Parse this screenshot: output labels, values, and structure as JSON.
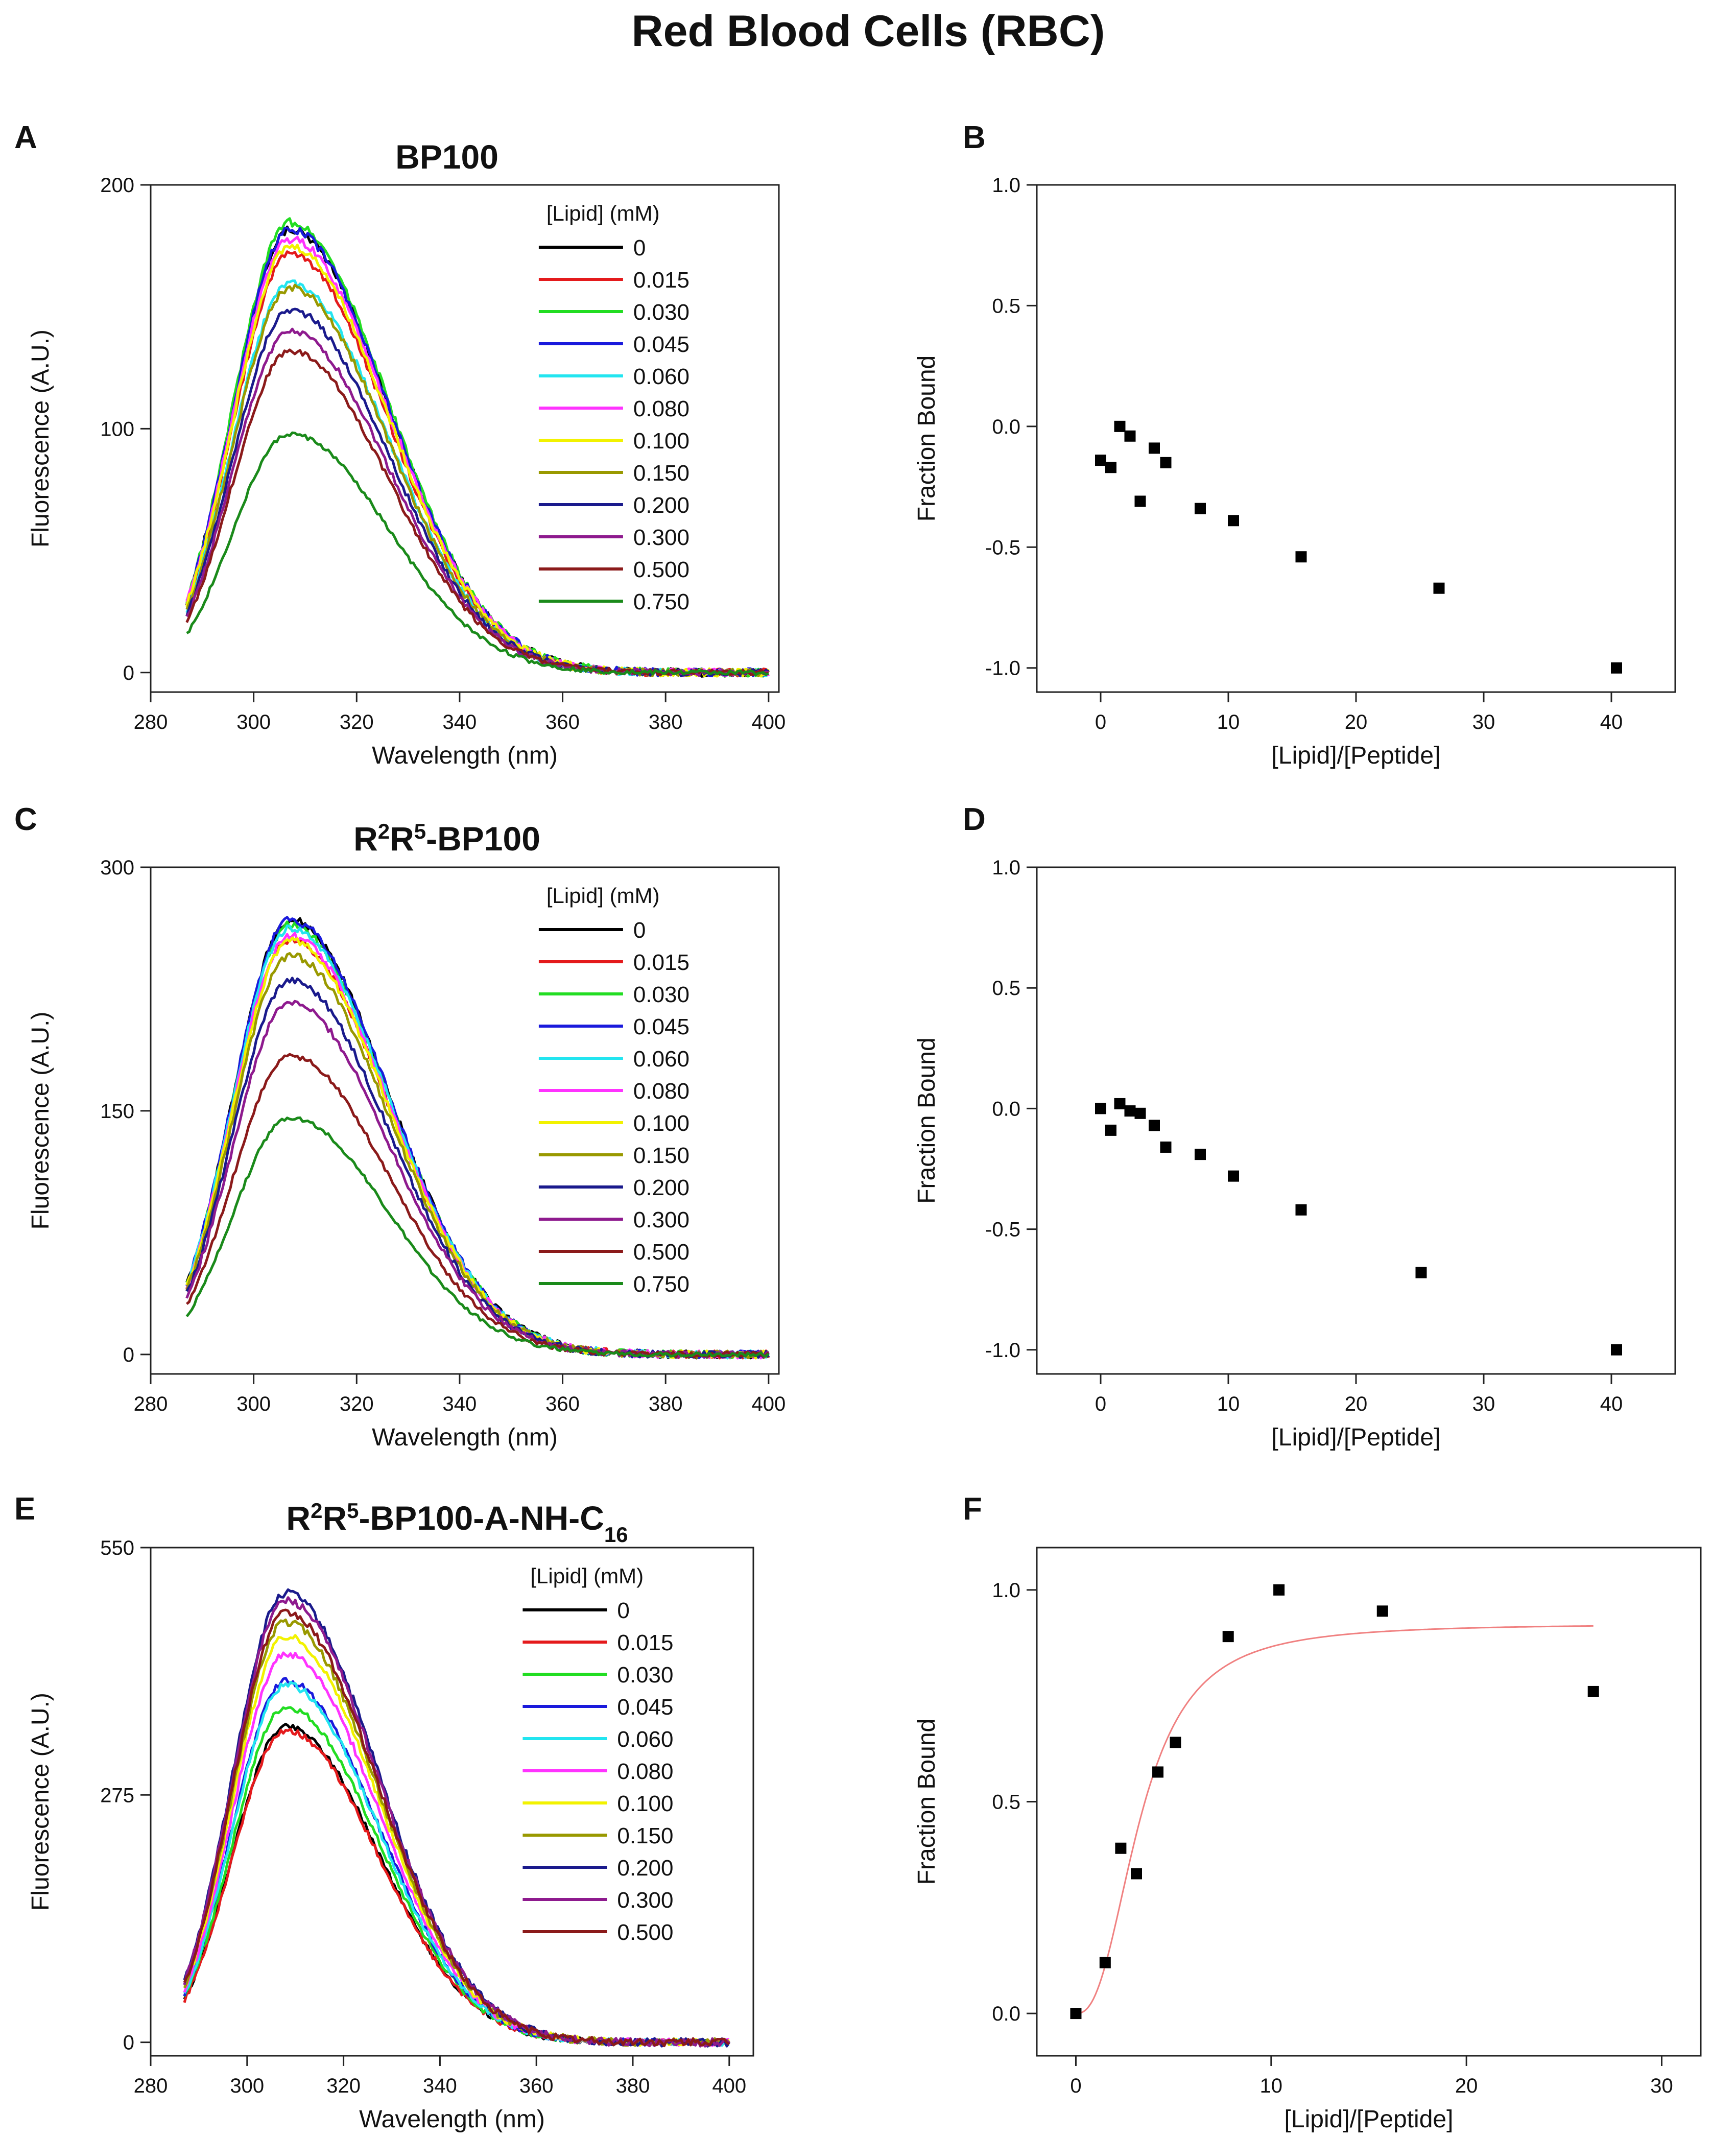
{
  "figure_title": "Red Blood Cells (RBC)",
  "chart_data": [
    {
      "panel": "A",
      "type": "line",
      "title_main": "BP100",
      "xlabel": "Wavelength (nm)",
      "ylabel": "Fluorescence (A.U.)",
      "xlim": [
        280,
        402
      ],
      "ylim": [
        -8,
        200
      ],
      "xticks": [
        280,
        300,
        320,
        340,
        360,
        380,
        400
      ],
      "xtick_labels": [
        "280",
        "300",
        "320",
        "340",
        "360",
        "380",
        "400"
      ],
      "yticks": [
        0,
        100,
        200
      ],
      "ytick_labels": [
        "0",
        "100",
        "200"
      ],
      "legend_title": "[Lipid] (mM)",
      "legend_position": "top-right",
      "curve_model": {
        "x_start": 287,
        "x_end": 400,
        "peak_x": 307,
        "width_left": 11,
        "width_right": 19
      },
      "series": [
        {
          "name": "0",
          "color": "#000000",
          "peak": 182
        },
        {
          "name": "0.015",
          "color": "#e41a1c",
          "peak": 172
        },
        {
          "name": "0.030",
          "color": "#22dd22",
          "peak": 185
        },
        {
          "name": "0.045",
          "color": "#1a1adc",
          "peak": 182
        },
        {
          "name": "0.060",
          "color": "#22e5f0",
          "peak": 160
        },
        {
          "name": "0.080",
          "color": "#ff33ff",
          "peak": 178
        },
        {
          "name": "0.100",
          "color": "#f2f200",
          "peak": 175
        },
        {
          "name": "0.150",
          "color": "#999900",
          "peak": 158
        },
        {
          "name": "0.200",
          "color": "#1a1a8c",
          "peak": 149
        },
        {
          "name": "0.300",
          "color": "#8e1a8e",
          "peak": 140
        },
        {
          "name": "0.500",
          "color": "#8b1a1a",
          "peak": 132
        },
        {
          "name": "0.750",
          "color": "#1a8a1a",
          "peak": 98
        }
      ]
    },
    {
      "panel": "B",
      "type": "scatter",
      "xlabel": "[Lipid]/[Peptide]",
      "ylabel": "Fraction Bound",
      "xlim": [
        -5,
        45
      ],
      "ylim": [
        -1.1,
        1.0
      ],
      "xticks": [
        0,
        10,
        20,
        30,
        40
      ],
      "xtick_labels": [
        "0",
        "10",
        "20",
        "30",
        "40"
      ],
      "yticks": [
        -1.0,
        -0.5,
        0.0,
        0.5,
        1.0
      ],
      "ytick_labels": [
        "-1.0",
        "-0.5",
        "0.0",
        "0.5",
        "1.0"
      ],
      "points": {
        "x": [
          0,
          0.8,
          1.5,
          2.3,
          3.1,
          4.2,
          5.1,
          7.8,
          10.4,
          15.7,
          26.5,
          40.4
        ],
        "y": [
          -0.14,
          -0.17,
          0.0,
          -0.04,
          -0.31,
          -0.09,
          -0.15,
          -0.34,
          -0.39,
          -0.54,
          -0.67,
          -1.0
        ]
      }
    },
    {
      "panel": "C",
      "type": "line",
      "title_main": "R",
      "title_sup1": "2",
      "title_mid": "R",
      "title_sup2": "5",
      "title_tail": "-BP100",
      "xlabel": "Wavelength (nm)",
      "ylabel": "Fluorescence (A.U.)",
      "xlim": [
        280,
        402
      ],
      "ylim": [
        -12,
        300
      ],
      "xticks": [
        280,
        300,
        320,
        340,
        360,
        380,
        400
      ],
      "xtick_labels": [
        "280",
        "300",
        "320",
        "340",
        "360",
        "380",
        "400"
      ],
      "yticks": [
        0,
        150,
        300
      ],
      "ytick_labels": [
        "0",
        "150",
        "300"
      ],
      "legend_title": "[Lipid] (mM)",
      "legend_position": "top-right",
      "curve_model": {
        "x_start": 287,
        "x_end": 400,
        "peak_x": 307,
        "width_left": 11,
        "width_right": 19
      },
      "series": [
        {
          "name": "0",
          "color": "#000000",
          "peak": 268
        },
        {
          "name": "0.015",
          "color": "#e41a1c",
          "peak": 256
        },
        {
          "name": "0.030",
          "color": "#22dd22",
          "peak": 265
        },
        {
          "name": "0.045",
          "color": "#1a1adc",
          "peak": 268
        },
        {
          "name": "0.060",
          "color": "#22e5f0",
          "peak": 263
        },
        {
          "name": "0.080",
          "color": "#ff33ff",
          "peak": 258
        },
        {
          "name": "0.100",
          "color": "#f2f200",
          "peak": 255
        },
        {
          "name": "0.150",
          "color": "#999900",
          "peak": 246
        },
        {
          "name": "0.200",
          "color": "#1a1a8c",
          "peak": 231
        },
        {
          "name": "0.300",
          "color": "#8e1a8e",
          "peak": 217
        },
        {
          "name": "0.500",
          "color": "#8b1a1a",
          "peak": 184
        },
        {
          "name": "0.750",
          "color": "#1a8a1a",
          "peak": 146
        }
      ]
    },
    {
      "panel": "D",
      "type": "scatter",
      "xlabel": "[Lipid]/[Peptide]",
      "ylabel": "Fraction Bound",
      "xlim": [
        -5,
        45
      ],
      "ylim": [
        -1.1,
        1.0
      ],
      "xticks": [
        0,
        10,
        20,
        30,
        40
      ],
      "xtick_labels": [
        "0",
        "10",
        "20",
        "30",
        "40"
      ],
      "yticks": [
        -1.0,
        -0.5,
        0.0,
        0.5,
        1.0
      ],
      "ytick_labels": [
        "-1.0",
        "-0.5",
        "0.0",
        "0.5",
        "1.0"
      ],
      "points": {
        "x": [
          0,
          0.8,
          1.5,
          2.3,
          3.1,
          4.2,
          5.1,
          7.8,
          10.4,
          15.7,
          25.1,
          40.4
        ],
        "y": [
          0.0,
          -0.09,
          0.02,
          -0.01,
          -0.02,
          -0.07,
          -0.16,
          -0.19,
          -0.28,
          -0.42,
          -0.68,
          -1.0
        ]
      }
    },
    {
      "panel": "E",
      "type": "line",
      "title_main": "R",
      "title_sup1": "2",
      "title_mid": "R",
      "title_sup2": "5",
      "title_tail": "-BP100-A-NH-C",
      "title_sub": "16",
      "xlabel": "Wavelength (nm)",
      "ylabel": "Fluorescence (A.U.)",
      "xlim": [
        280,
        405
      ],
      "ylim": [
        -15,
        550
      ],
      "xticks": [
        280,
        300,
        320,
        340,
        360,
        380,
        400
      ],
      "xtick_labels": [
        "280",
        "300",
        "320",
        "340",
        "360",
        "380",
        "400"
      ],
      "yticks": [
        0,
        275,
        550
      ],
      "ytick_labels": [
        "0",
        "275",
        "550"
      ],
      "legend_title": "[Lipid] (mM)",
      "legend_position": "top-right",
      "curve_model": {
        "x_start": 287,
        "x_end": 400,
        "peak_x": 308,
        "width_left": 11,
        "width_right": 19
      },
      "series": [
        {
          "name": "0",
          "color": "#000000",
          "peak": 352
        },
        {
          "name": "0.015",
          "color": "#e41a1c",
          "peak": 347
        },
        {
          "name": "0.030",
          "color": "#22dd22",
          "peak": 373
        },
        {
          "name": "0.045",
          "color": "#1a1adc",
          "peak": 402
        },
        {
          "name": "0.060",
          "color": "#22e5f0",
          "peak": 398
        },
        {
          "name": "0.080",
          "color": "#ff33ff",
          "peak": 432
        },
        {
          "name": "0.100",
          "color": "#f2f200",
          "peak": 452
        },
        {
          "name": "0.150",
          "color": "#999900",
          "peak": 468
        },
        {
          "name": "0.200",
          "color": "#1a1a8c",
          "peak": 500
        },
        {
          "name": "0.300",
          "color": "#8e1a8e",
          "peak": 492
        },
        {
          "name": "0.500",
          "color": "#8b1a1a",
          "peak": 478
        }
      ]
    },
    {
      "panel": "F",
      "type": "scatter",
      "xlabel": "[Lipid]/[Peptide]",
      "ylabel": "Fraction Bound",
      "xlim": [
        -2,
        32
      ],
      "ylim": [
        -0.1,
        1.1
      ],
      "xticks": [
        0,
        10,
        20,
        30
      ],
      "xtick_labels": [
        "0",
        "10",
        "20",
        "30"
      ],
      "yticks": [
        0.0,
        0.5,
        1.0
      ],
      "ytick_labels": [
        "0.0",
        "0.5",
        "1.0"
      ],
      "points": {
        "x": [
          0,
          1.5,
          2.3,
          3.1,
          4.2,
          5.1,
          7.8,
          10.4,
          15.7,
          26.5
        ],
        "y": [
          0.0,
          0.12,
          0.39,
          0.33,
          0.57,
          0.64,
          0.89,
          1.0,
          0.95,
          0.76
        ]
      },
      "fit": {
        "type": "hill",
        "color": "#f08080",
        "ymax": 0.92,
        "k": 3.3,
        "n": 2.5,
        "x_range": [
          0,
          26.5
        ]
      }
    }
  ]
}
